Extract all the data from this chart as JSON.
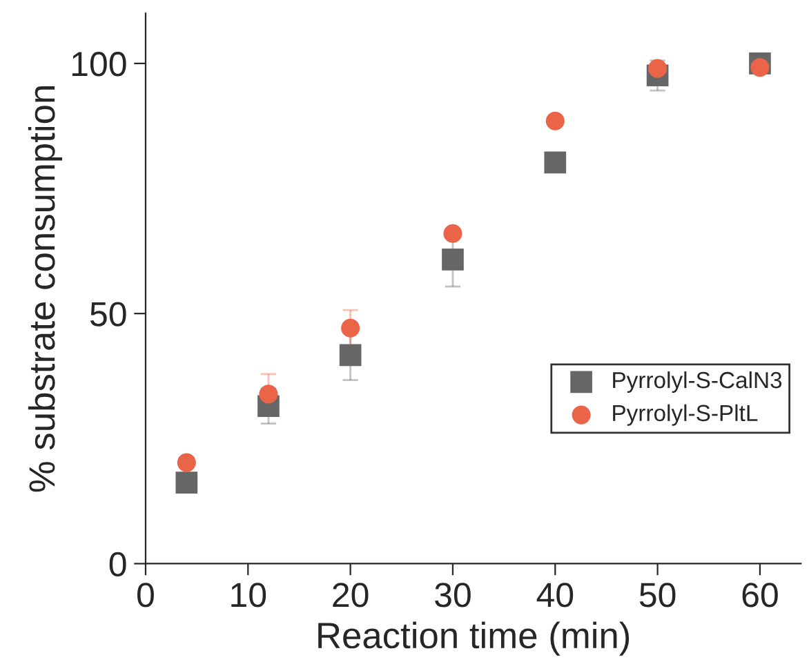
{
  "chart_data": {
    "type": "scatter",
    "xlabel": "Reaction time (min)",
    "ylabel": "% substrate consumption",
    "x": [
      4,
      12,
      20,
      30,
      40,
      50,
      60
    ],
    "series": [
      {
        "name": "Pyrrolyl-S-CalN3",
        "color": "#666666",
        "marker": "square",
        "values": [
          16.2,
          31.5,
          41.7,
          60.8,
          80.2,
          97.6,
          100
        ],
        "errors": [
          null,
          3.5,
          5,
          5.4,
          null,
          3,
          null
        ]
      },
      {
        "name": "Pyrrolyl-S-PltL",
        "color": "#ea6448",
        "marker": "circle",
        "values": [
          20.2,
          33.9,
          47.1,
          66,
          88.5,
          99,
          99.2
        ],
        "errors": [
          1,
          4,
          3.6,
          null,
          null,
          null,
          null
        ]
      }
    ],
    "xlim": [
      0,
      64
    ],
    "ylim": [
      0,
      110
    ],
    "xticks": [
      0,
      10,
      20,
      30,
      40,
      50,
      60
    ],
    "yticks": [
      0,
      50,
      100
    ],
    "grid": false,
    "legend": "right"
  }
}
